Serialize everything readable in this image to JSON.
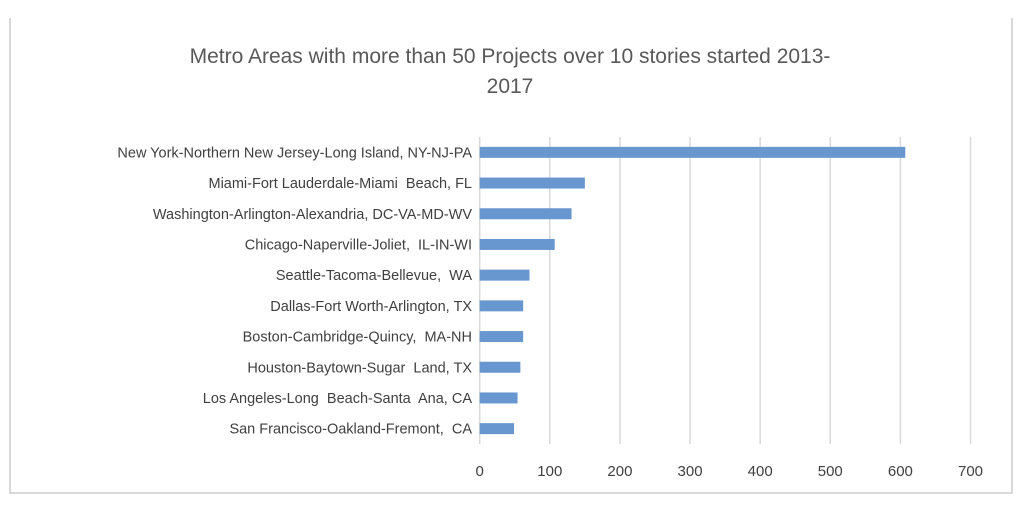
{
  "chart_data": {
    "type": "bar",
    "orientation": "horizontal",
    "title": "Metro Areas with more than 50 Projects over 10 stories started 2013-2017",
    "title_lines": [
      "Metro Areas with more than 50 Projects over 10 stories started 2013-",
      "2017"
    ],
    "categories": [
      "New York-Northern New Jersey-Long Island, NY-NJ-PA",
      "Miami-Fort Lauderdale-Miami  Beach, FL",
      "Washington-Arlington-Alexandria, DC-VA-MD-WV",
      "Chicago-Naperville-Joliet,  IL-IN-WI",
      "Seattle-Tacoma-Bellevue,  WA",
      "Dallas-Fort Worth-Arlington, TX",
      "Boston-Cambridge-Quincy,  MA-NH",
      "Houston-Baytown-Sugar  Land, TX",
      "Los Angeles-Long  Beach-Santa  Ana, CA",
      "San Francisco-Oakland-Fremont,  CA"
    ],
    "values": [
      607,
      150,
      131,
      107,
      71,
      62,
      62,
      58,
      54,
      49
    ],
    "xlabel": "",
    "ylabel": "",
    "xlim": [
      0,
      700
    ],
    "xticks": [
      "0",
      "100",
      "200",
      "300",
      "400",
      "500",
      "600",
      "700"
    ],
    "grid": true,
    "legend": "none",
    "colors": {
      "bar": "#6897d0",
      "grid": "#d9d9d9",
      "text": "#404040",
      "title": "#595959"
    }
  }
}
